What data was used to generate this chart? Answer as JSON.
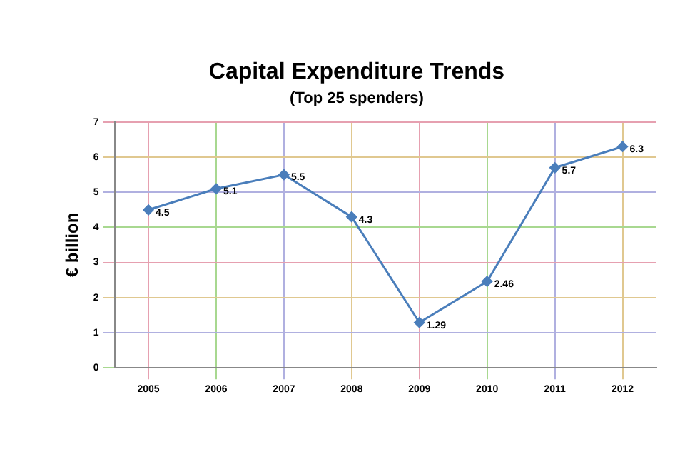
{
  "chart_data": {
    "type": "line",
    "title": "Capital Expenditure Trends",
    "subtitle": "(Top 25 spenders)",
    "ylabel": "€ billion",
    "categories": [
      "2005",
      "2006",
      "2007",
      "2008",
      "2009",
      "2010",
      "2011",
      "2012"
    ],
    "series": [
      {
        "color": "#4a7ebb",
        "values": [
          4.5,
          5.1,
          5.5,
          4.3,
          1.29,
          2.46,
          5.7,
          6.3
        ]
      }
    ],
    "ylim": [
      0,
      7
    ],
    "yticks": [
      0,
      1,
      2,
      3,
      4,
      5,
      6,
      7
    ],
    "grid": true,
    "marker": "diamond",
    "data_labels": true
  }
}
